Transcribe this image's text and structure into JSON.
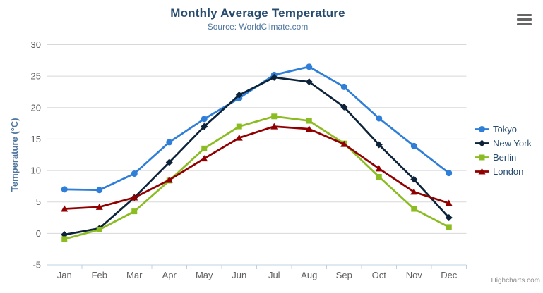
{
  "chart_data": {
    "type": "line",
    "title": "Monthly Average Temperature",
    "subtitle": "Source: WorldClimate.com",
    "categories": [
      "Jan",
      "Feb",
      "Mar",
      "Apr",
      "May",
      "Jun",
      "Jul",
      "Aug",
      "Sep",
      "Oct",
      "Nov",
      "Dec"
    ],
    "xlabel": "",
    "ylabel": "Temperature (°C)",
    "ylim": [
      -5,
      30
    ],
    "ytick_interval": 5,
    "grid": true,
    "legend_position": "right",
    "series": [
      {
        "name": "Tokyo",
        "color": "#2f7ed8",
        "marker": "circle",
        "values": [
          7.0,
          6.9,
          9.5,
          14.5,
          18.2,
          21.5,
          25.2,
          26.5,
          23.3,
          18.3,
          13.9,
          9.6
        ]
      },
      {
        "name": "New York",
        "color": "#0d233a",
        "marker": "diamond",
        "values": [
          -0.2,
          0.8,
          5.7,
          11.3,
          17.0,
          22.0,
          24.8,
          24.1,
          20.1,
          14.1,
          8.6,
          2.5
        ]
      },
      {
        "name": "Berlin",
        "color": "#8bbc21",
        "marker": "square",
        "values": [
          -0.9,
          0.6,
          3.5,
          8.4,
          13.5,
          17.0,
          18.6,
          17.9,
          14.3,
          9.0,
          3.9,
          1.0
        ]
      },
      {
        "name": "London",
        "color": "#910000",
        "marker": "triangle",
        "values": [
          3.9,
          4.2,
          5.7,
          8.5,
          11.9,
          15.2,
          17.0,
          16.6,
          14.2,
          10.3,
          6.6,
          4.8
        ]
      }
    ]
  },
  "credits": {
    "label": "Highcharts.com"
  },
  "icons": {
    "context_menu": "hamburger-icon"
  },
  "colors": {
    "title": "#274b6d",
    "subtitle": "#4d759e",
    "axis_title": "#4d759e",
    "axis_labels": "#606060",
    "gridline": "#d8d8d8",
    "axis_line": "#c0d0e0",
    "tick": "#c0d0e0",
    "legend_text": "#274b6d",
    "credits": "#909090",
    "hamburger": "#666666",
    "background": "#ffffff"
  }
}
